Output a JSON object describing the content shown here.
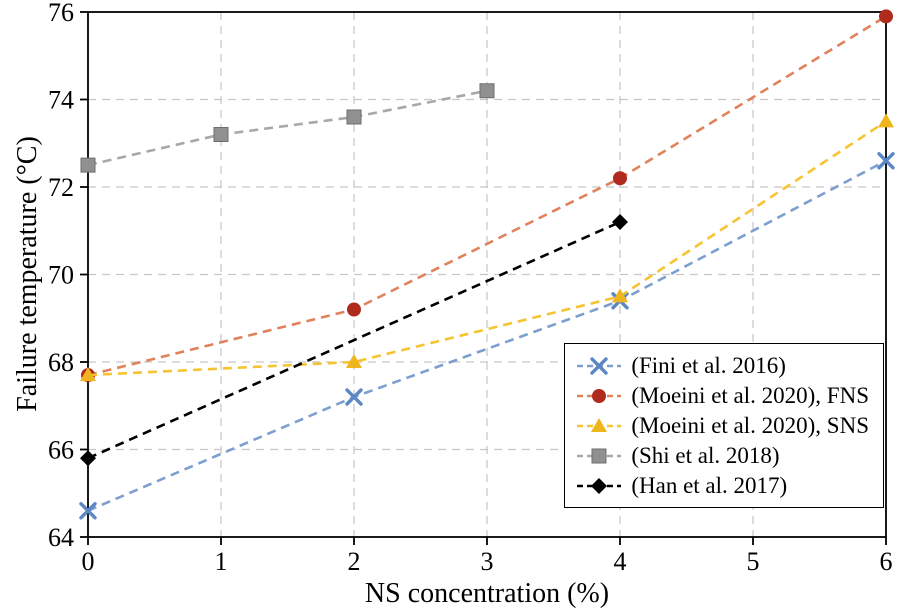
{
  "chart_data": {
    "type": "line",
    "title": "",
    "xlabel": "NS concentration (%)",
    "ylabel": "Failure temperature (°C)",
    "xlim": [
      0,
      6
    ],
    "ylim": [
      64,
      76
    ],
    "x_ticks": [
      0,
      1,
      2,
      3,
      4,
      5,
      6
    ],
    "y_ticks": [
      64,
      66,
      68,
      70,
      72,
      74,
      76
    ],
    "grid": true,
    "grid_style": "dashed",
    "legend_position": "bottom-right",
    "series": [
      {
        "name": "(Fini et al. 2016)",
        "marker": "x",
        "line_color": "#7d9fd0",
        "marker_color": "#5b87c5",
        "x": [
          0,
          2,
          4,
          6
        ],
        "y": [
          64.6,
          67.2,
          69.4,
          72.6
        ]
      },
      {
        "name": "(Moeini et al. 2020), FNS",
        "marker": "circle",
        "line_color": "#e0825c",
        "marker_color": "#b02a1e",
        "x": [
          0,
          2,
          4,
          6
        ],
        "y": [
          67.7,
          69.2,
          72.2,
          75.9
        ]
      },
      {
        "name": "(Moeini et al. 2020), SNS",
        "marker": "triangle",
        "line_color": "#f6c431",
        "marker_color": "#efb51f",
        "x": [
          0,
          2,
          4,
          6
        ],
        "y": [
          67.7,
          68.0,
          69.5,
          73.5
        ]
      },
      {
        "name": "(Shi et al. 2018)",
        "marker": "square",
        "line_color": "#a8a8a8",
        "marker_color": "#909090",
        "x": [
          0,
          1,
          2,
          3
        ],
        "y": [
          72.5,
          73.2,
          73.6,
          74.2
        ]
      },
      {
        "name": "(Han et al. 2017)",
        "marker": "diamond",
        "line_color": "#000000",
        "marker_color": "#000000",
        "x": [
          0,
          4
        ],
        "y": [
          65.8,
          71.2
        ]
      }
    ]
  }
}
